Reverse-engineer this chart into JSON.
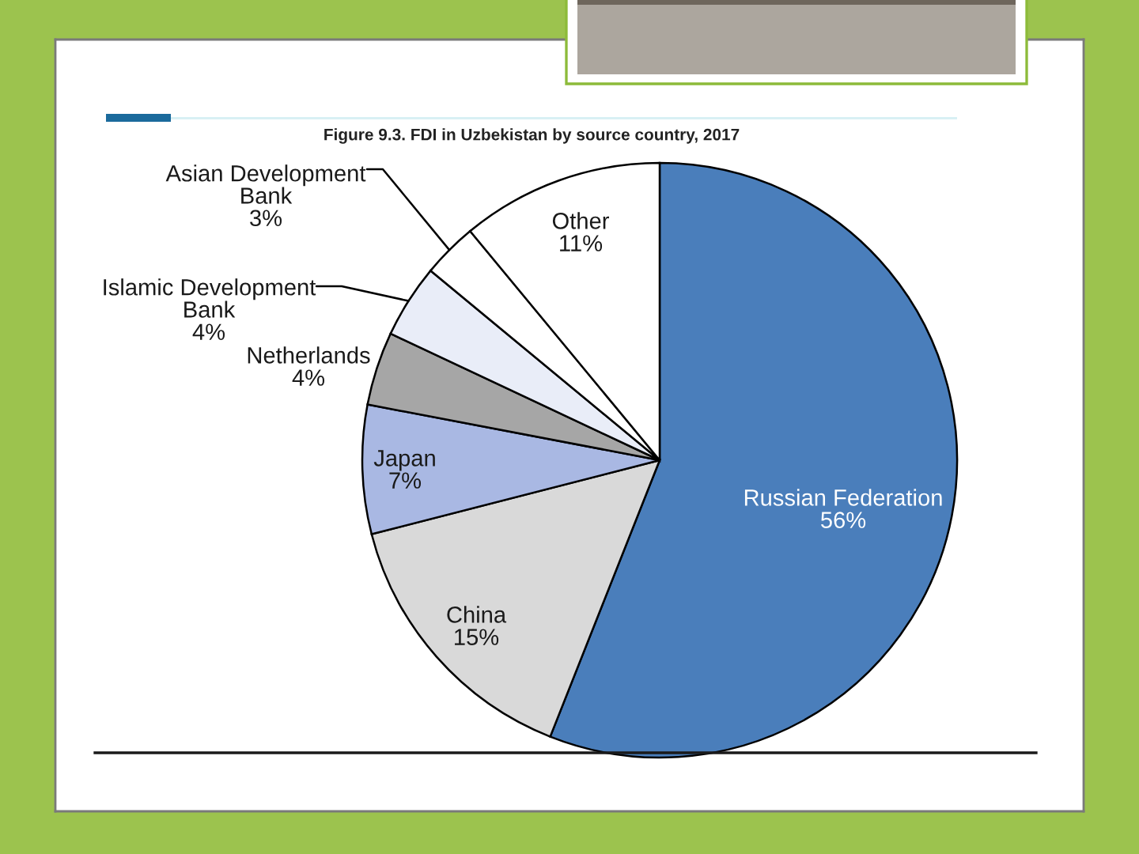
{
  "chart_data": {
    "type": "pie",
    "title": "Figure 9.3. FDI in Uzbekistan by source country, 2017",
    "categories": [
      "Russian Federation",
      "China",
      "Japan",
      "Netherlands",
      "Islamic Development Bank",
      "Asian Development Bank",
      "Other"
    ],
    "values": [
      56,
      15,
      7,
      4,
      4,
      3,
      11
    ],
    "value_labels": [
      "56%",
      "15%",
      "7%",
      "4%",
      "4%",
      "3%",
      "11%"
    ],
    "colors": [
      "#4a7ebb",
      "#d9d9d9",
      "#a9b8e3",
      "#a6a6a6",
      "#e9edf8",
      "#ffffff",
      "#ffffff"
    ]
  }
}
